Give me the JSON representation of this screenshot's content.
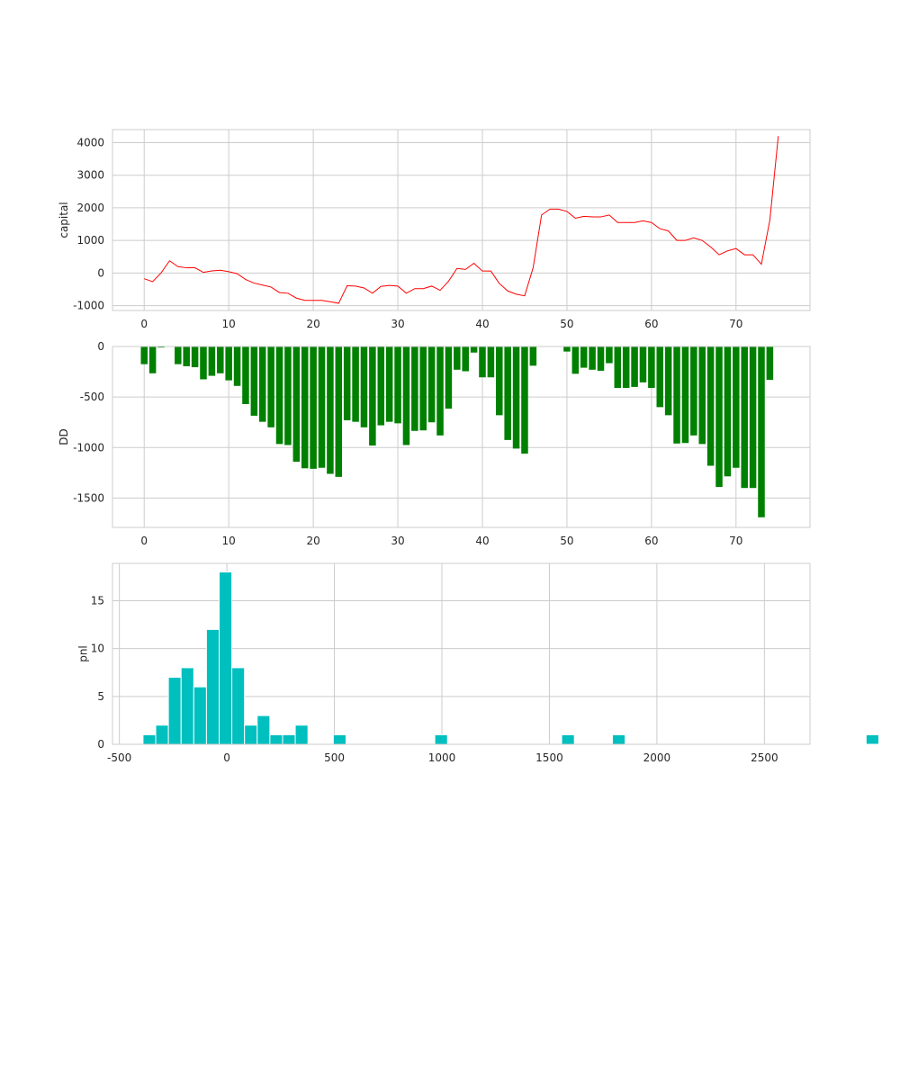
{
  "chart_data": [
    {
      "type": "line",
      "ylabel": "capital",
      "color": "#ff0000",
      "xlim": [
        -3.75,
        78.75
      ],
      "ylim": [
        -1150,
        4400
      ],
      "xticks": [
        0,
        10,
        20,
        30,
        40,
        50,
        60,
        70
      ],
      "yticks": [
        -1000,
        0,
        1000,
        2000,
        3000,
        4000
      ],
      "grid": true,
      "x": [
        0,
        1,
        2,
        3,
        4,
        5,
        6,
        7,
        8,
        9,
        10,
        11,
        12,
        13,
        14,
        15,
        16,
        17,
        18,
        19,
        20,
        21,
        22,
        23,
        24,
        25,
        26,
        27,
        28,
        29,
        30,
        31,
        32,
        33,
        34,
        35,
        36,
        37,
        38,
        39,
        40,
        41,
        42,
        43,
        44,
        45,
        46,
        47,
        48,
        49,
        50,
        51,
        52,
        53,
        54,
        55,
        56,
        57,
        58,
        59,
        60,
        61,
        62,
        63,
        64,
        65,
        66,
        67,
        68,
        69,
        70,
        71,
        72,
        73,
        74,
        75
      ],
      "values": [
        -175,
        -265,
        5,
        375,
        195,
        160,
        160,
        20,
        65,
        85,
        40,
        -20,
        -200,
        -310,
        -370,
        -430,
        -600,
        -620,
        -770,
        -840,
        -840,
        -840,
        -880,
        -930,
        -390,
        -400,
        -460,
        -620,
        -410,
        -380,
        -400,
        -620,
        -480,
        -480,
        -400,
        -530,
        -250,
        140,
        110,
        300,
        60,
        60,
        -320,
        -550,
        -650,
        -700,
        160,
        1780,
        1960,
        1960,
        1890,
        1680,
        1740,
        1720,
        1720,
        1780,
        1550,
        1550,
        1550,
        1600,
        1550,
        1360,
        1290,
        1000,
        1000,
        1080,
        1000,
        800,
        560,
        680,
        750,
        560,
        560,
        270,
        1620,
        4200
      ]
    },
    {
      "type": "bar",
      "ylabel": "DD",
      "color": "#008000",
      "xlim": [
        -3.75,
        78.75
      ],
      "ylim": [
        -1790,
        0
      ],
      "xticks": [
        0,
        10,
        20,
        30,
        40,
        50,
        60,
        70
      ],
      "yticks": [
        0,
        -500,
        -1000,
        -1500
      ],
      "grid": true,
      "x": [
        0,
        1,
        2,
        3,
        4,
        5,
        6,
        7,
        8,
        9,
        10,
        11,
        12,
        13,
        14,
        15,
        16,
        17,
        18,
        19,
        20,
        21,
        22,
        23,
        24,
        25,
        26,
        27,
        28,
        29,
        30,
        31,
        32,
        33,
        34,
        35,
        36,
        37,
        38,
        39,
        40,
        41,
        42,
        43,
        44,
        45,
        46,
        47,
        48,
        49,
        50,
        51,
        52,
        53,
        54,
        55,
        56,
        57,
        58,
        59,
        60,
        61,
        62,
        63,
        64,
        65,
        66,
        67,
        68,
        69,
        70,
        71,
        72,
        73,
        74,
        75
      ],
      "values": [
        -175,
        -265,
        -10,
        0,
        -175,
        -195,
        -205,
        -325,
        -290,
        -265,
        -335,
        -390,
        -570,
        -685,
        -745,
        -800,
        -965,
        -975,
        -1140,
        -1205,
        -1210,
        -1200,
        -1260,
        -1290,
        -730,
        -745,
        -800,
        -980,
        -780,
        -745,
        -760,
        -975,
        -835,
        -830,
        -750,
        -880,
        -615,
        -230,
        -245,
        -60,
        -305,
        -305,
        -680,
        -925,
        -1010,
        -1060,
        -190,
        0,
        0,
        0,
        -50,
        -270,
        -210,
        -230,
        -240,
        -165,
        -410,
        -410,
        -400,
        -355,
        -410,
        -600,
        -680,
        -960,
        -955,
        -880,
        -965,
        -1180,
        -1390,
        -1285,
        -1200,
        -1400,
        -1400,
        -1690,
        -330,
        0
      ]
    },
    {
      "type": "histogram",
      "ylabel": "pnl",
      "color": "#00bfbf",
      "xlim": [
        -532,
        2712
      ],
      "ylim": [
        0,
        18.9
      ],
      "xticks": [
        -500,
        0,
        500,
        1000,
        1500,
        2000,
        2500
      ],
      "yticks": [
        0,
        5,
        10,
        15
      ],
      "grid": true,
      "bin_start": -390,
      "bin_width": 59,
      "counts": [
        1,
        2,
        7,
        8,
        6,
        12,
        18,
        8,
        2,
        3,
        1,
        1,
        2,
        0,
        0,
        1,
        0,
        0,
        0,
        0,
        0,
        0,
        0,
        1,
        0,
        0,
        0,
        0,
        0,
        0,
        0,
        0,
        0,
        1,
        0,
        0,
        0,
        1,
        0,
        0,
        0,
        0,
        0,
        0,
        0,
        0,
        0,
        0,
        0,
        0,
        0,
        0,
        0,
        0,
        0,
        0,
        0,
        1
      ]
    }
  ]
}
